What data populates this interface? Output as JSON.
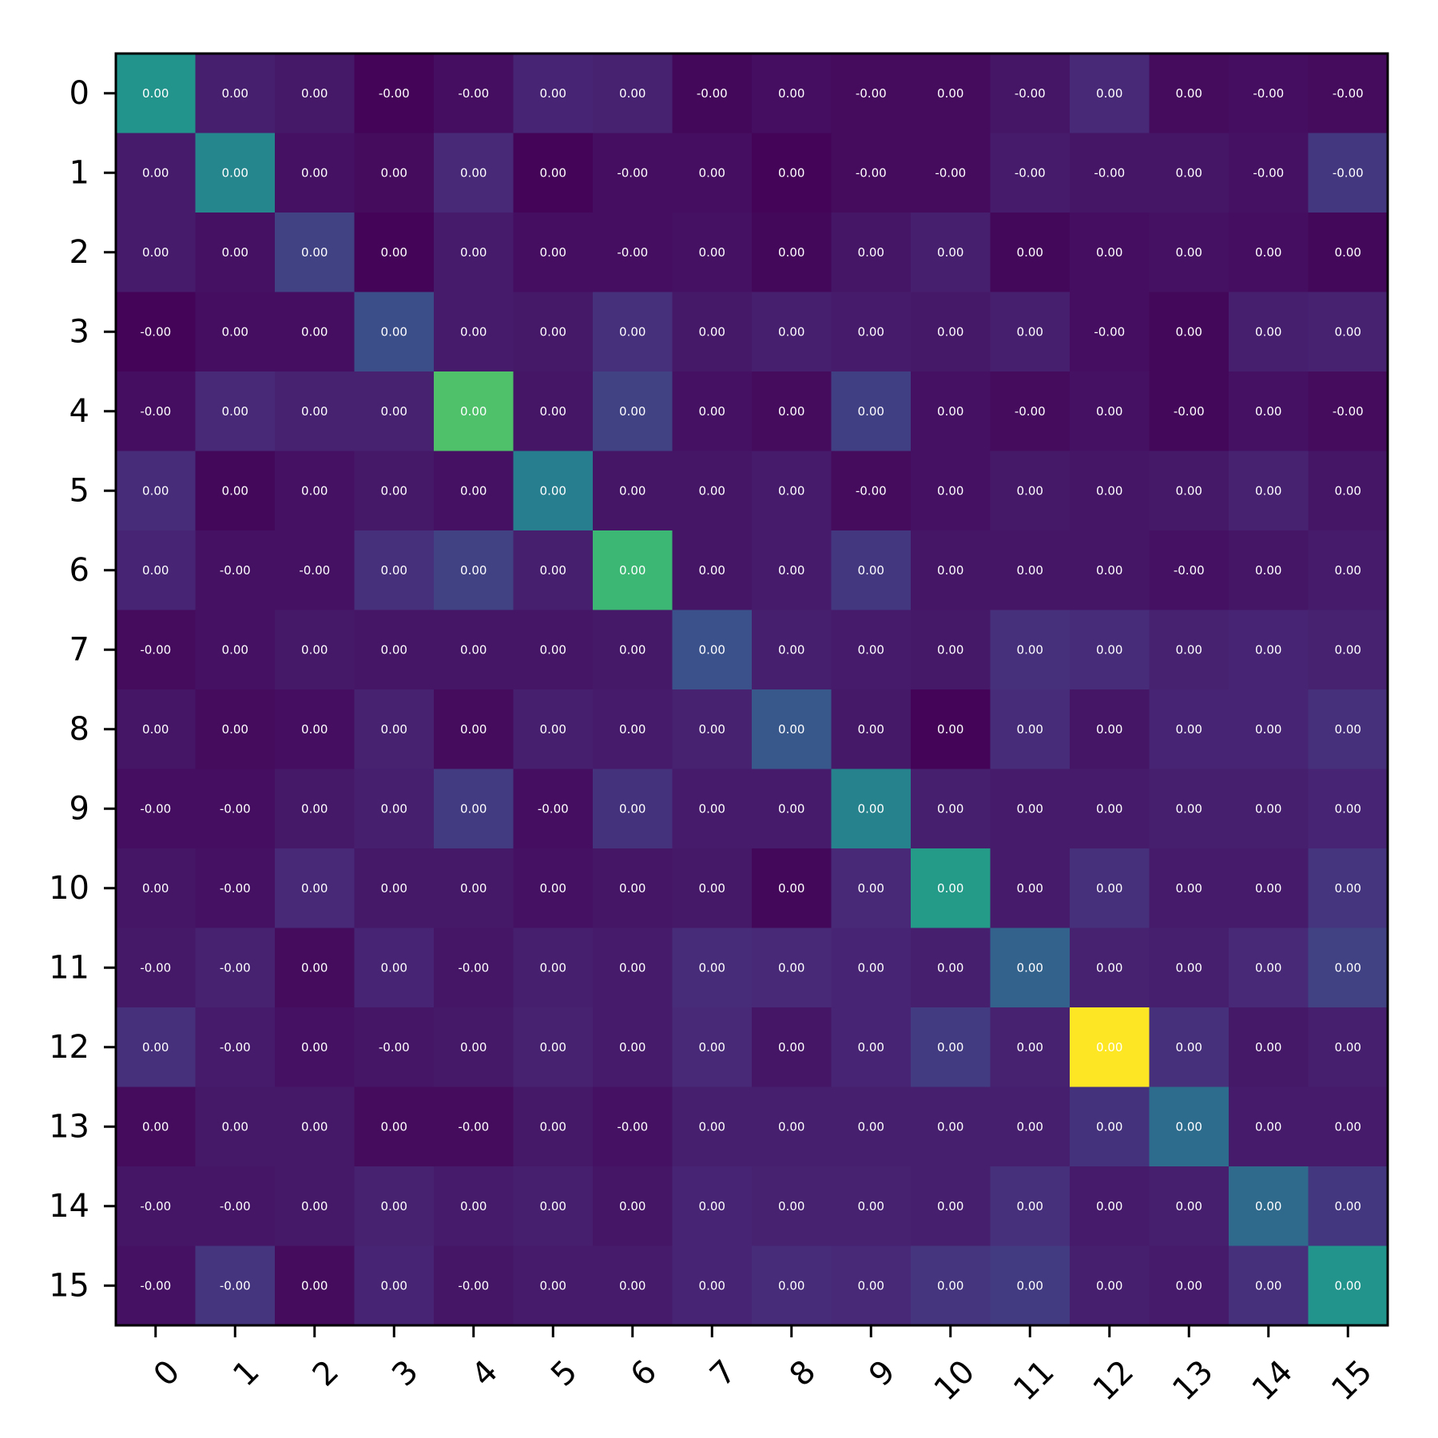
{
  "chart_data": {
    "type": "heatmap",
    "title": "",
    "xlabel": "",
    "ylabel": "",
    "colormap": "viridis",
    "x_categories": [
      "0",
      "1",
      "2",
      "3",
      "4",
      "5",
      "6",
      "7",
      "8",
      "9",
      "10",
      "11",
      "12",
      "13",
      "14",
      "15"
    ],
    "y_categories": [
      "0",
      "1",
      "2",
      "3",
      "4",
      "5",
      "6",
      "7",
      "8",
      "9",
      "10",
      "11",
      "12",
      "13",
      "14",
      "15"
    ],
    "x_tick_rotation_deg": 45,
    "intensity": [
      [
        0.52,
        0.09,
        0.07,
        0.01,
        0.04,
        0.11,
        0.1,
        0.02,
        0.04,
        0.03,
        0.03,
        0.06,
        0.12,
        0.03,
        0.04,
        0.03
      ],
      [
        0.08,
        0.46,
        0.05,
        0.03,
        0.12,
        0.01,
        0.04,
        0.04,
        0.01,
        0.03,
        0.03,
        0.08,
        0.06,
        0.06,
        0.05,
        0.17
      ],
      [
        0.08,
        0.05,
        0.2,
        0.01,
        0.08,
        0.04,
        0.04,
        0.05,
        0.02,
        0.06,
        0.09,
        0.02,
        0.04,
        0.05,
        0.04,
        0.02
      ],
      [
        0.01,
        0.04,
        0.04,
        0.24,
        0.08,
        0.07,
        0.14,
        0.07,
        0.09,
        0.08,
        0.07,
        0.09,
        0.04,
        0.02,
        0.09,
        0.1
      ],
      [
        0.04,
        0.12,
        0.1,
        0.1,
        0.72,
        0.06,
        0.2,
        0.05,
        0.03,
        0.19,
        0.05,
        0.03,
        0.05,
        0.02,
        0.05,
        0.03
      ],
      [
        0.13,
        0.02,
        0.05,
        0.07,
        0.05,
        0.43,
        0.06,
        0.06,
        0.08,
        0.03,
        0.05,
        0.07,
        0.06,
        0.07,
        0.1,
        0.06
      ],
      [
        0.11,
        0.05,
        0.05,
        0.14,
        0.2,
        0.09,
        0.68,
        0.06,
        0.08,
        0.17,
        0.06,
        0.06,
        0.06,
        0.05,
        0.06,
        0.08
      ],
      [
        0.03,
        0.05,
        0.07,
        0.06,
        0.06,
        0.06,
        0.07,
        0.25,
        0.09,
        0.08,
        0.07,
        0.14,
        0.13,
        0.1,
        0.11,
        0.1
      ],
      [
        0.06,
        0.03,
        0.04,
        0.1,
        0.03,
        0.09,
        0.08,
        0.1,
        0.28,
        0.07,
        0.01,
        0.13,
        0.06,
        0.11,
        0.11,
        0.14
      ],
      [
        0.04,
        0.04,
        0.07,
        0.09,
        0.18,
        0.04,
        0.15,
        0.08,
        0.08,
        0.45,
        0.09,
        0.08,
        0.08,
        0.09,
        0.09,
        0.11
      ],
      [
        0.06,
        0.05,
        0.12,
        0.07,
        0.07,
        0.05,
        0.06,
        0.07,
        0.02,
        0.12,
        0.55,
        0.08,
        0.14,
        0.08,
        0.08,
        0.16
      ],
      [
        0.07,
        0.1,
        0.03,
        0.11,
        0.06,
        0.09,
        0.08,
        0.13,
        0.12,
        0.11,
        0.09,
        0.32,
        0.1,
        0.09,
        0.12,
        0.2
      ],
      [
        0.14,
        0.08,
        0.05,
        0.06,
        0.07,
        0.1,
        0.08,
        0.12,
        0.06,
        0.11,
        0.18,
        0.1,
        1.0,
        0.14,
        0.07,
        0.09
      ],
      [
        0.03,
        0.07,
        0.07,
        0.03,
        0.03,
        0.07,
        0.05,
        0.09,
        0.09,
        0.09,
        0.09,
        0.09,
        0.15,
        0.36,
        0.08,
        0.08
      ],
      [
        0.06,
        0.06,
        0.07,
        0.1,
        0.08,
        0.09,
        0.06,
        0.11,
        0.1,
        0.1,
        0.09,
        0.14,
        0.08,
        0.09,
        0.35,
        0.17
      ],
      [
        0.05,
        0.16,
        0.03,
        0.11,
        0.06,
        0.08,
        0.08,
        0.11,
        0.13,
        0.12,
        0.16,
        0.18,
        0.09,
        0.08,
        0.14,
        0.52
      ]
    ],
    "labels": [
      [
        "0.00",
        "0.00",
        "0.00",
        "-0.00",
        "-0.00",
        "0.00",
        "0.00",
        "-0.00",
        "0.00",
        "-0.00",
        "0.00",
        "-0.00",
        "0.00",
        "0.00",
        "-0.00",
        "-0.00"
      ],
      [
        "0.00",
        "0.00",
        "0.00",
        "0.00",
        "0.00",
        "0.00",
        "-0.00",
        "0.00",
        "0.00",
        "-0.00",
        "-0.00",
        "-0.00",
        "-0.00",
        "0.00",
        "-0.00",
        "-0.00"
      ],
      [
        "0.00",
        "0.00",
        "0.00",
        "0.00",
        "0.00",
        "0.00",
        "-0.00",
        "0.00",
        "0.00",
        "0.00",
        "0.00",
        "0.00",
        "0.00",
        "0.00",
        "0.00",
        "0.00"
      ],
      [
        "-0.00",
        "0.00",
        "0.00",
        "0.00",
        "0.00",
        "0.00",
        "0.00",
        "0.00",
        "0.00",
        "0.00",
        "0.00",
        "0.00",
        "-0.00",
        "0.00",
        "0.00",
        "0.00"
      ],
      [
        "-0.00",
        "0.00",
        "0.00",
        "0.00",
        "0.00",
        "0.00",
        "0.00",
        "0.00",
        "0.00",
        "0.00",
        "0.00",
        "-0.00",
        "0.00",
        "-0.00",
        "0.00",
        "-0.00"
      ],
      [
        "0.00",
        "0.00",
        "0.00",
        "0.00",
        "0.00",
        "0.00",
        "0.00",
        "0.00",
        "0.00",
        "-0.00",
        "0.00",
        "0.00",
        "0.00",
        "0.00",
        "0.00",
        "0.00"
      ],
      [
        "0.00",
        "-0.00",
        "-0.00",
        "0.00",
        "0.00",
        "0.00",
        "0.00",
        "0.00",
        "0.00",
        "0.00",
        "0.00",
        "0.00",
        "0.00",
        "-0.00",
        "0.00",
        "0.00"
      ],
      [
        "-0.00",
        "0.00",
        "0.00",
        "0.00",
        "0.00",
        "0.00",
        "0.00",
        "0.00",
        "0.00",
        "0.00",
        "0.00",
        "0.00",
        "0.00",
        "0.00",
        "0.00",
        "0.00"
      ],
      [
        "0.00",
        "0.00",
        "0.00",
        "0.00",
        "0.00",
        "0.00",
        "0.00",
        "0.00",
        "0.00",
        "0.00",
        "0.00",
        "0.00",
        "0.00",
        "0.00",
        "0.00",
        "0.00"
      ],
      [
        "-0.00",
        "-0.00",
        "0.00",
        "0.00",
        "0.00",
        "-0.00",
        "0.00",
        "0.00",
        "0.00",
        "0.00",
        "0.00",
        "0.00",
        "0.00",
        "0.00",
        "0.00",
        "0.00"
      ],
      [
        "0.00",
        "-0.00",
        "0.00",
        "0.00",
        "0.00",
        "0.00",
        "0.00",
        "0.00",
        "0.00",
        "0.00",
        "0.00",
        "0.00",
        "0.00",
        "0.00",
        "0.00",
        "0.00"
      ],
      [
        "-0.00",
        "-0.00",
        "0.00",
        "0.00",
        "-0.00",
        "0.00",
        "0.00",
        "0.00",
        "0.00",
        "0.00",
        "0.00",
        "0.00",
        "0.00",
        "0.00",
        "0.00",
        "0.00"
      ],
      [
        "0.00",
        "-0.00",
        "0.00",
        "-0.00",
        "0.00",
        "0.00",
        "0.00",
        "0.00",
        "0.00",
        "0.00",
        "0.00",
        "0.00",
        "0.00",
        "0.00",
        "0.00",
        "0.00"
      ],
      [
        "0.00",
        "0.00",
        "0.00",
        "0.00",
        "-0.00",
        "0.00",
        "-0.00",
        "0.00",
        "0.00",
        "0.00",
        "0.00",
        "0.00",
        "0.00",
        "0.00",
        "0.00",
        "0.00"
      ],
      [
        "-0.00",
        "-0.00",
        "0.00",
        "0.00",
        "0.00",
        "0.00",
        "0.00",
        "0.00",
        "0.00",
        "0.00",
        "0.00",
        "0.00",
        "0.00",
        "0.00",
        "0.00",
        "0.00"
      ],
      [
        "-0.00",
        "-0.00",
        "0.00",
        "0.00",
        "-0.00",
        "0.00",
        "0.00",
        "0.00",
        "0.00",
        "0.00",
        "0.00",
        "0.00",
        "0.00",
        "0.00",
        "0.00",
        "0.00"
      ]
    ]
  }
}
